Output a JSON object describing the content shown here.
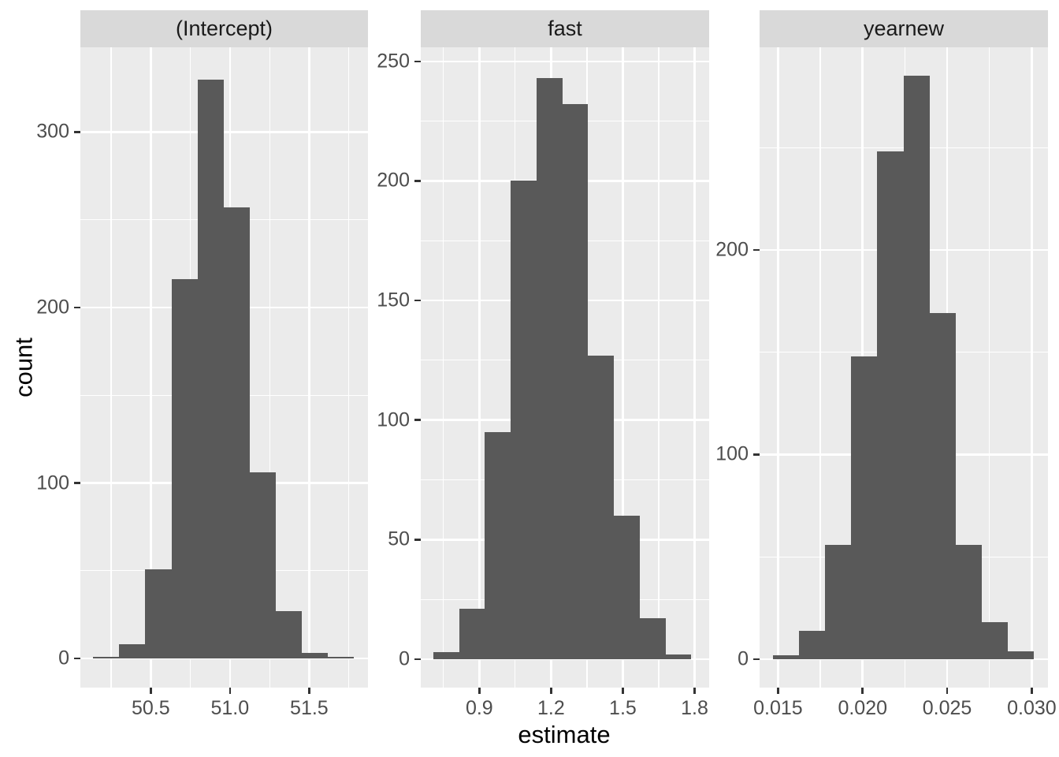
{
  "chart_data": {
    "type": "bar",
    "subtype": "faceted-histogram",
    "title": "",
    "xlabel": "estimate",
    "ylabel": "count",
    "legend_position": "none",
    "grid": "on",
    "colors": {
      "bar_fill": "#595959",
      "panel_bg": "#EBEBEB",
      "strip_bg": "#D9D9D9",
      "strip_text": "#1A1A1A",
      "gridline": "#FFFFFF",
      "tick_mark": "#333333",
      "tick_label": "#4D4D4D",
      "axis_title": "#000000",
      "figure_bg": "#FFFFFF"
    },
    "facets": [
      {
        "label": "(Intercept)",
        "x_domain": [
          50.056,
          51.871
        ],
        "y_domain": [
          -16.6,
          348.3
        ],
        "x_ticks": [
          {
            "v": 50.5,
            "t": "50.5"
          },
          {
            "v": 51.0,
            "t": "51.0"
          },
          {
            "v": 51.5,
            "t": "51.5"
          }
        ],
        "x_minor": [
          50.25,
          50.75,
          51.25,
          51.75
        ],
        "y_ticks": [
          {
            "v": 0,
            "t": "0"
          },
          {
            "v": 100,
            "t": "100"
          },
          {
            "v": 200,
            "t": "200"
          },
          {
            "v": 300,
            "t": "300"
          }
        ],
        "y_minor": [
          50,
          150,
          250
        ],
        "bins": {
          "start": 50.137,
          "width": 0.1646,
          "counts": [
            1,
            8,
            51,
            216,
            330,
            257,
            106,
            27,
            3,
            1
          ]
        }
      },
      {
        "label": "fast",
        "x_domain": [
          0.655,
          1.861
        ],
        "y_domain": [
          -11.9,
          255.9
        ],
        "x_ticks": [
          {
            "v": 0.9,
            "t": "0.9"
          },
          {
            "v": 1.2,
            "t": "1.2"
          },
          {
            "v": 1.5,
            "t": "1.5"
          },
          {
            "v": 1.8,
            "t": "1.8"
          }
        ],
        "x_minor": [
          0.75,
          1.05,
          1.35,
          1.65
        ],
        "y_ticks": [
          {
            "v": 0,
            "t": "0"
          },
          {
            "v": 50,
            "t": "50"
          },
          {
            "v": 100,
            "t": "100"
          },
          {
            "v": 150,
            "t": "150"
          },
          {
            "v": 200,
            "t": "200"
          },
          {
            "v": 250,
            "t": "250"
          }
        ],
        "y_minor": [
          25,
          75,
          125,
          175,
          225
        ],
        "bins": {
          "start": 0.7074,
          "width": 0.10793,
          "counts": [
            3,
            21,
            95,
            200,
            243,
            232,
            127,
            60,
            17,
            2
          ]
        }
      },
      {
        "label": "yearnew",
        "x_domain": [
          0.01391,
          0.03096
        ],
        "y_domain": [
          -13.9,
          299.0
        ],
        "x_ticks": [
          {
            "v": 0.015,
            "t": "0.015"
          },
          {
            "v": 0.02,
            "t": "0.020"
          },
          {
            "v": 0.025,
            "t": "0.025"
          },
          {
            "v": 0.03,
            "t": "0.030"
          }
        ],
        "x_minor": [
          0.0175,
          0.0225,
          0.0275
        ],
        "y_ticks": [
          {
            "v": 0,
            "t": "0"
          },
          {
            "v": 100,
            "t": "100"
          },
          {
            "v": 200,
            "t": "200"
          }
        ],
        "y_minor": [
          50,
          150,
          250
        ],
        "bins": {
          "start": 0.014697,
          "width": 0.0015438,
          "counts": [
            2,
            14,
            56,
            148,
            248,
            285,
            169,
            56,
            18,
            4
          ]
        }
      }
    ]
  }
}
